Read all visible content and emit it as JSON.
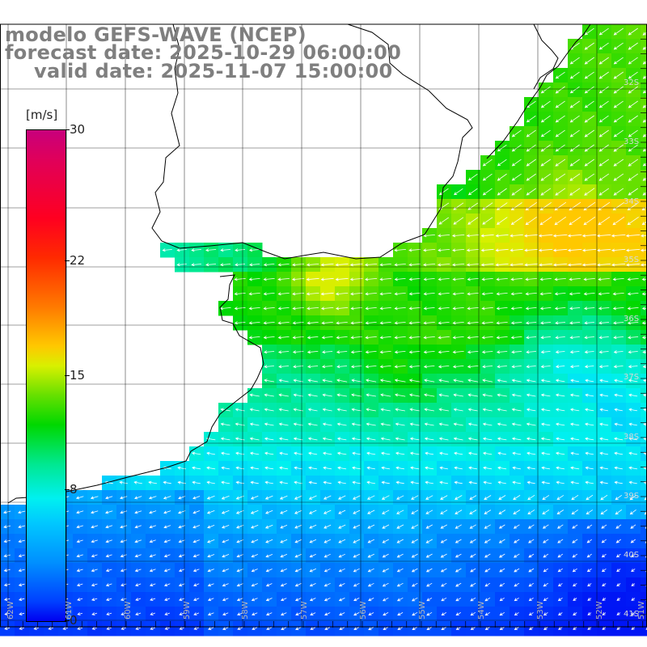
{
  "title": {
    "line1": "modelo GEFS-WAVE (NCEP)",
    "line2": "forecast date: 2025-10-29 06:00:00",
    "line3": "valid date: 2025-11-07 15:00:00"
  },
  "colorbar": {
    "unit": "[m/s]",
    "ticks": [
      {
        "label": "30",
        "value": 30
      },
      {
        "label": "22",
        "value": 22
      },
      {
        "label": "15",
        "value": 15
      },
      {
        "label": "8",
        "value": 8
      },
      {
        "label": "0",
        "value": 0
      }
    ],
    "min": 0,
    "max": 30
  },
  "map": {
    "variable": "wind speed and direction",
    "lat_labels": [
      "32S",
      "33S",
      "34S",
      "35S",
      "36S",
      "37S",
      "38S",
      "39S",
      "40S",
      "41S"
    ],
    "lon_labels": [
      "62W",
      "61W",
      "60W",
      "59W",
      "58W",
      "57W",
      "56W",
      "55W",
      "54W",
      "53W",
      "52W",
      "51W"
    ],
    "colors": {
      "land": "#ffffff",
      "coastline": "#000000",
      "grid": "#000000",
      "arrow": "#ffffff"
    }
  }
}
